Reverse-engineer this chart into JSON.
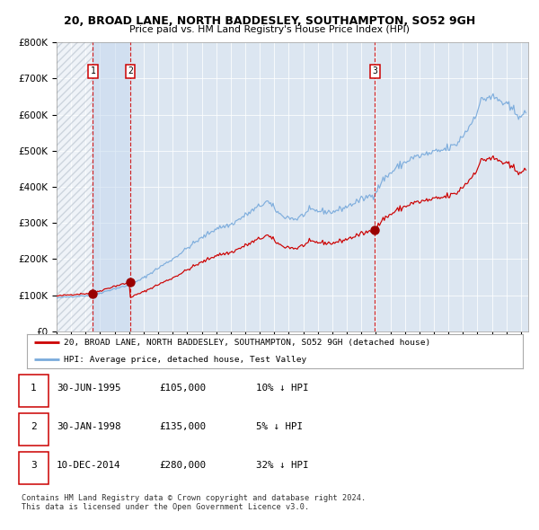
{
  "title": "20, BROAD LANE, NORTH BADDESLEY, SOUTHAMPTON, SO52 9GH",
  "subtitle": "Price paid vs. HM Land Registry's House Price Index (HPI)",
  "legend_line1": "20, BROAD LANE, NORTH BADDESLEY, SOUTHAMPTON, SO52 9GH (detached house)",
  "legend_line2": "HPI: Average price, detached house, Test Valley",
  "sale_points": [
    {
      "date": "1995-06-30",
      "price": 105000,
      "label": "1"
    },
    {
      "date": "1998-01-30",
      "price": 135000,
      "label": "2"
    },
    {
      "date": "2014-12-10",
      "price": 280000,
      "label": "3"
    }
  ],
  "table_rows": [
    {
      "num": "1",
      "date": "30-JUN-1995",
      "price": "£105,000",
      "hpi": "10% ↓ HPI"
    },
    {
      "num": "2",
      "date": "30-JAN-1998",
      "price": "£135,000",
      "hpi": "5% ↓ HPI"
    },
    {
      "num": "3",
      "date": "10-DEC-2014",
      "price": "£280,000",
      "hpi": "32% ↓ HPI"
    }
  ],
  "footer": "Contains HM Land Registry data © Crown copyright and database right 2024.\nThis data is licensed under the Open Government Licence v3.0.",
  "hpi_line_color": "#7aabdc",
  "price_line_color": "#cc0000",
  "dashed_line_color": "#cc0000",
  "background_color": "#ffffff",
  "plot_bg_color": "#dce6f1",
  "ylim": [
    0,
    800000
  ],
  "yticks": [
    0,
    100000,
    200000,
    300000,
    400000,
    500000,
    600000,
    700000,
    800000
  ],
  "xmin": 1993.0,
  "xmax": 2025.5
}
